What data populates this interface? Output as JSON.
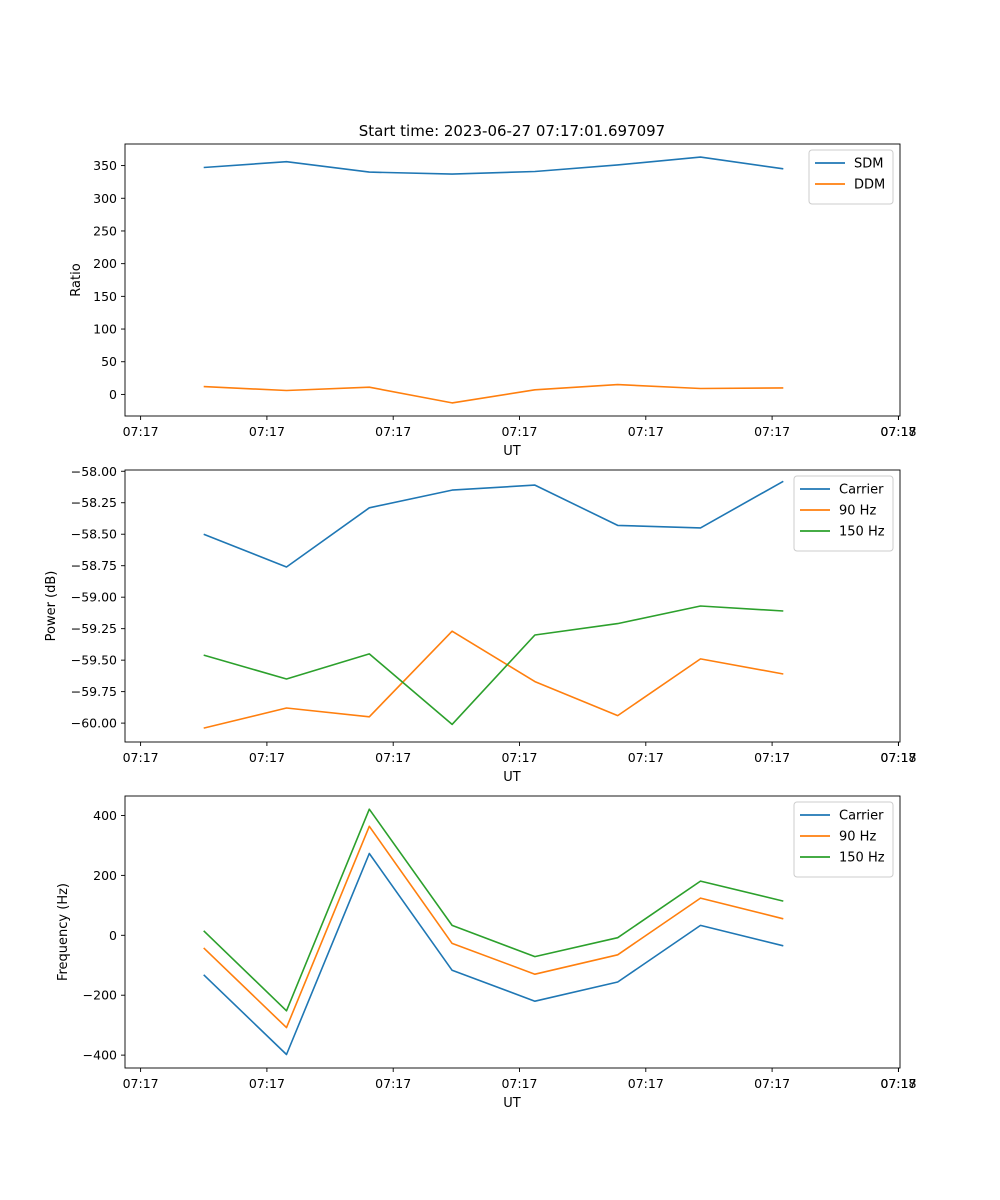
{
  "figure": {
    "title": "Start time: 2023-06-27 07:17:01.697097"
  },
  "colors": {
    "blue": "#1f77b4",
    "orange": "#ff7f0e",
    "green": "#2ca02c"
  },
  "chart_data": [
    {
      "type": "line",
      "title": "Start time: 2023-06-27 07:17:01.697097",
      "xlabel": "UT",
      "ylabel": "Ratio",
      "x_tick_labels": [
        "07:17",
        "07:17",
        "07:17",
        "07:17",
        "07:17",
        "07:17",
        "07:17"
      ],
      "x_tick_label_last": "07:18",
      "y_ticks": [
        0,
        50,
        100,
        150,
        200,
        250,
        300,
        350
      ],
      "y_tick_labels": [
        "0",
        "50",
        "100",
        "150",
        "200",
        "250",
        "300",
        "350"
      ],
      "ylim": [
        -33,
        383
      ],
      "x_index": [
        1,
        2,
        3,
        4,
        5,
        6,
        7,
        8
      ],
      "legend_position": "upper-right",
      "grid": false,
      "series": [
        {
          "name": "SDM",
          "color": "#1f77b4",
          "values": [
            347,
            356,
            340,
            337,
            341,
            351,
            363,
            345
          ]
        },
        {
          "name": "DDM",
          "color": "#ff7f0e",
          "values": [
            12,
            6,
            11,
            -13,
            7,
            15,
            9,
            10
          ]
        }
      ]
    },
    {
      "type": "line",
      "xlabel": "UT",
      "ylabel": "Power (dB)",
      "x_tick_labels": [
        "07:17",
        "07:17",
        "07:17",
        "07:17",
        "07:17",
        "07:17",
        "07:17"
      ],
      "x_tick_label_last": "07:18",
      "y_ticks": [
        -60.0,
        -59.75,
        -59.5,
        -59.25,
        -59.0,
        -58.75,
        -58.5,
        -58.25,
        -58.0
      ],
      "y_tick_labels": [
        "−60.00",
        "−59.75",
        "−59.50",
        "−59.25",
        "−59.00",
        "−58.75",
        "−58.50",
        "−58.25",
        "−58.00"
      ],
      "ylim": [
        -60.15,
        -57.99
      ],
      "x_index": [
        1,
        2,
        3,
        4,
        5,
        6,
        7,
        8
      ],
      "legend_position": "upper-right",
      "grid": false,
      "series": [
        {
          "name": "Carrier",
          "color": "#1f77b4",
          "values": [
            -58.5,
            -58.76,
            -58.29,
            -58.15,
            -58.11,
            -58.43,
            -58.45,
            -58.08
          ]
        },
        {
          "name": "90 Hz",
          "color": "#ff7f0e",
          "values": [
            -60.04,
            -59.88,
            -59.95,
            -59.27,
            -59.67,
            -59.94,
            -59.49,
            -59.61
          ]
        },
        {
          "name": "150 Hz",
          "color": "#2ca02c",
          "values": [
            -59.46,
            -59.65,
            -59.45,
            -60.01,
            -59.3,
            -59.21,
            -59.07,
            -59.11
          ]
        }
      ]
    },
    {
      "type": "line",
      "xlabel": "UT",
      "ylabel": "Frequency (Hz)",
      "x_tick_labels": [
        "07:17",
        "07:17",
        "07:17",
        "07:17",
        "07:17",
        "07:17",
        "07:17"
      ],
      "x_tick_label_last": "07:18",
      "y_ticks": [
        -400,
        -200,
        0,
        200,
        400
      ],
      "y_tick_labels": [
        "−400",
        "−200",
        "0",
        "200",
        "400"
      ],
      "ylim": [
        -443,
        465
      ],
      "x_index": [
        1,
        2,
        3,
        4,
        5,
        6,
        7,
        8
      ],
      "legend_position": "upper-right",
      "grid": false,
      "series": [
        {
          "name": "Carrier",
          "color": "#1f77b4",
          "values": [
            -132,
            -398,
            273,
            -117,
            -220,
            -156,
            33,
            -35
          ]
        },
        {
          "name": "90 Hz",
          "color": "#ff7f0e",
          "values": [
            -42,
            -308,
            364,
            -27,
            -130,
            -65,
            124,
            55
          ]
        },
        {
          "name": "150 Hz",
          "color": "#2ca02c",
          "values": [
            15,
            -252,
            421,
            33,
            -71,
            -8,
            181,
            114
          ]
        }
      ]
    }
  ]
}
